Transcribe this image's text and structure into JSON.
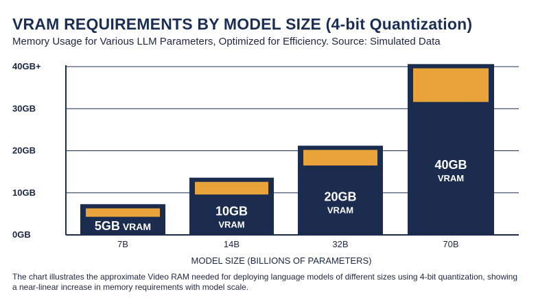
{
  "title": "VRAM REQUIREMENTS BY MODEL SIZE (4-bit Quantization)",
  "subtitle": "Memory Usage for Various LLM Parameters, Optimized for Efficiency. Source: Simulated Data",
  "caption": "The chart illustrates the approximate Video RAM needed for deploying language models of different sizes using 4-bit quantization, showing a near-linear increase in memory requirements with model scale.",
  "colors": {
    "outer": "#1b2c4f",
    "band": "#e8a33a",
    "inner": "#1b2c4f",
    "grid": "#1b2c4f"
  },
  "chart_data": {
    "type": "bar",
    "title": "VRAM REQUIREMENTS BY MODEL SIZE (4-bit Quantization)",
    "subtitle": "Memory Usage for Various LLM Parameters, Optimized for Efficiency. Source: Simulated Data",
    "xlabel": "MODEL SIZE (BILLIONS OF PARAMETERS)",
    "ylabel": "",
    "categories": [
      "7B",
      "14B",
      "32B",
      "70B"
    ],
    "ylim": [
      0,
      40
    ],
    "yticks": [
      0,
      10,
      20,
      30,
      40
    ],
    "ytick_labels": [
      "0GB",
      "10GB",
      "20GB",
      "30GB",
      "40GB+"
    ],
    "grid": true,
    "bars": [
      {
        "category": "7B",
        "outer": 7.3,
        "band_top": 6.3,
        "inner_top": 4.3,
        "label": [
          "5GB VRAM"
        ]
      },
      {
        "category": "14B",
        "outer": 13.6,
        "band_top": 12.6,
        "inner_top": 9.6,
        "label": [
          "10GB",
          "VRAM"
        ]
      },
      {
        "category": "32B",
        "outer": 21.2,
        "band_top": 20.2,
        "inner_top": 16.5,
        "label": [
          "20GB",
          "VRAM"
        ]
      },
      {
        "category": "70B",
        "outer": 40.6,
        "band_top": 39.6,
        "inner_top": 31.6,
        "label": [
          "40GB",
          "VRAM"
        ]
      }
    ]
  }
}
